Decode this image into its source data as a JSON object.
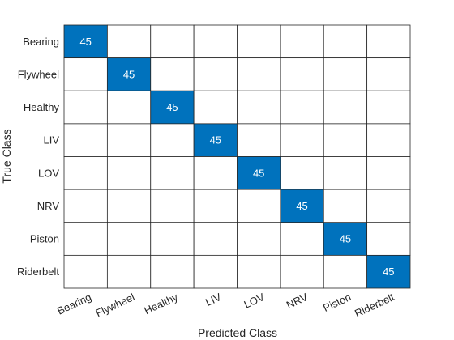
{
  "chart_data": {
    "type": "heatmap",
    "title": "",
    "xlabel": "Predicted Class",
    "ylabel": "True Class",
    "classes": [
      "Bearing",
      "Flywheel",
      "Healthy",
      "LIV",
      "LOV",
      "NRV",
      "Piston",
      "Riderbelt"
    ],
    "matrix": [
      [
        45,
        0,
        0,
        0,
        0,
        0,
        0,
        0
      ],
      [
        0,
        45,
        0,
        0,
        0,
        0,
        0,
        0
      ],
      [
        0,
        0,
        45,
        0,
        0,
        0,
        0,
        0
      ],
      [
        0,
        0,
        0,
        45,
        0,
        0,
        0,
        0
      ],
      [
        0,
        0,
        0,
        0,
        45,
        0,
        0,
        0
      ],
      [
        0,
        0,
        0,
        0,
        0,
        45,
        0,
        0
      ],
      [
        0,
        0,
        0,
        0,
        0,
        0,
        45,
        0
      ],
      [
        0,
        0,
        0,
        0,
        0,
        0,
        0,
        45
      ]
    ],
    "grid": true,
    "colors": {
      "filled": "#0072bd",
      "empty": "#ffffff",
      "grid": "#262626",
      "cell_text": "#ffffff"
    }
  }
}
